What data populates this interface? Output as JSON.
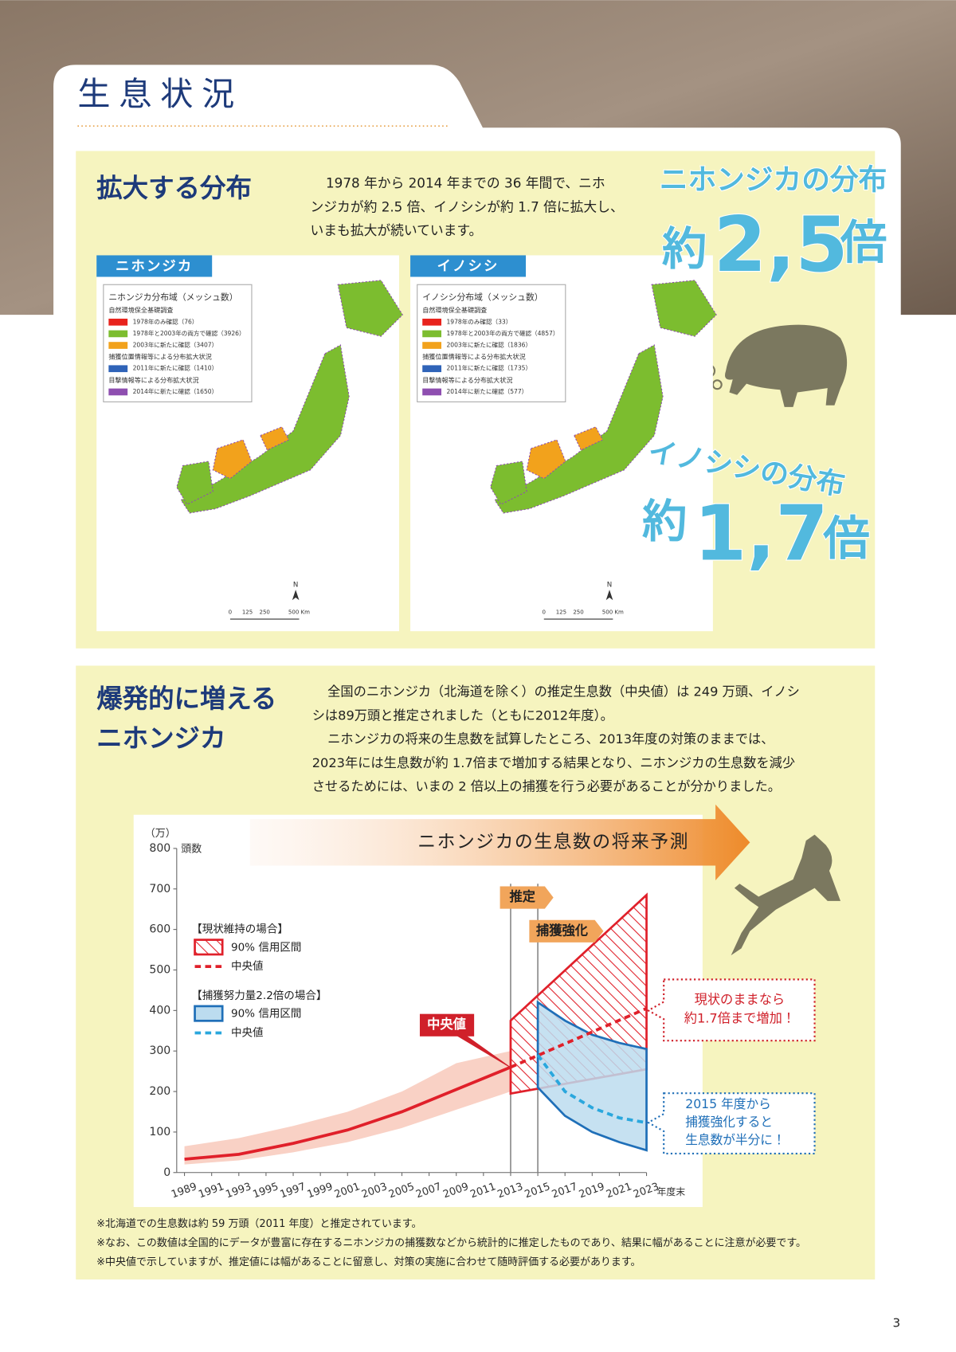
{
  "header": {
    "title": "生息状況"
  },
  "section1": {
    "title": "拡大する分布",
    "text": [
      "1978 年から 2014 年までの 36 年間で、ニホ",
      "ンジカが約 2.5 倍、イノシシが約 1.7 倍に拡大し、",
      "いまも拡大が続いています。"
    ],
    "maps": [
      {
        "tab": "ニホンジカ",
        "legend_title": "ニホンジカ分布域（メッシュ数）",
        "legend": [
          {
            "text": "自然環境保全基礎調査"
          },
          {
            "text": "1978年のみ確認（76）",
            "color": "#e8231d"
          },
          {
            "text": "1978年と2003年の両方で確認（3926）",
            "color": "#7cbd2f"
          },
          {
            "text": "2003年に新たに確認（3407）",
            "color": "#f2a21c"
          },
          {
            "text": "捕獲位置情報等による分布拡大状況"
          },
          {
            "text": "2011年に新たに確認（1410）",
            "color": "#2f63b8"
          },
          {
            "text": "目撃情報等による分布拡大状況"
          },
          {
            "text": "2014年に新たに確認（1650）",
            "color": "#8e4fb0"
          }
        ],
        "north": "N",
        "scale": [
          "0",
          "125",
          "250",
          "500 Km"
        ]
      },
      {
        "tab": "イノシシ",
        "legend_title": "イノシシ分布域（メッシュ数）",
        "legend": [
          {
            "text": "自然環境保全基礎調査"
          },
          {
            "text": "1978年のみ確認（33）",
            "color": "#e8231d"
          },
          {
            "text": "1978年と2003年の両方で確認（4857）",
            "color": "#7cbd2f"
          },
          {
            "text": "2003年に新たに確認（1836）",
            "color": "#f2a21c"
          },
          {
            "text": "捕獲位置情報等による分布拡大状況"
          },
          {
            "text": "2011年に新たに確認（1735）",
            "color": "#2f63b8"
          },
          {
            "text": "目撃情報等による分布拡大状況"
          },
          {
            "text": "2014年に新たに確認（577）",
            "color": "#8e4fb0"
          }
        ],
        "north": "N",
        "scale": [
          "0",
          "125",
          "250",
          "500 Km"
        ]
      }
    ],
    "callouts": [
      {
        "label": "ニホンジカの分布",
        "prefix": "約",
        "number": "2,5",
        "suffix": "倍"
      },
      {
        "label": "イノシシの分布",
        "prefix": "約",
        "number": "1,7",
        "suffix": "倍"
      }
    ]
  },
  "section2": {
    "title": [
      "爆発的に増える",
      "ニホンジカ"
    ],
    "text": [
      "全国のニホンジカ（北海道を除く）の推定生息数（中央値）は 249 万頭、イノシ",
      "シは89万頭と推定されました（ともに2012年度）。",
      "ニホンジカの将来の生息数を試算したところ、2013年度の対策のままでは、",
      "2023年には生息数が約 1.7倍まで増加する結果となり、ニホンジカの生息数を減少",
      "させるためには、いまの 2 倍以上の捕獲を行う必要があることが分かりました。"
    ]
  },
  "chart_data": {
    "type": "line",
    "title": "ニホンジカの生息数の将来予測",
    "y_unit": "（万）",
    "ylabel": "頭数",
    "xlabel": "年度末",
    "xlim": [
      1989,
      2023
    ],
    "ylim": [
      0,
      800
    ],
    "xticks": [
      1989,
      1991,
      1993,
      1995,
      1997,
      1999,
      2001,
      2003,
      2005,
      2007,
      2009,
      2011,
      2013,
      2015,
      2017,
      2019,
      2021,
      2023
    ],
    "yticks": [
      0,
      100,
      200,
      300,
      400,
      500,
      600,
      700,
      800
    ],
    "vlines": [
      2013,
      2015
    ],
    "bands": [
      {
        "x": [
          1989,
          1993,
          1997,
          2001,
          2005,
          2009,
          2013
        ],
        "lower": [
          20,
          30,
          50,
          75,
          110,
          155,
          200
        ],
        "upper": [
          65,
          85,
          115,
          150,
          200,
          270,
          300
        ],
        "color": "#f8c9bb"
      },
      {
        "x": [
          2013,
          2023
        ],
        "lower": [
          195,
          255
        ],
        "upper": [
          375,
          685
        ],
        "color": "#e0202a",
        "hatch": true
      },
      {
        "x": [
          2015,
          2017,
          2019,
          2021,
          2023
        ],
        "lower": [
          210,
          140,
          100,
          75,
          55
        ],
        "upper": [
          420,
          375,
          340,
          320,
          305
        ],
        "color": "#1f6fb8",
        "fill": "#bcdcef"
      }
    ],
    "lines": [
      {
        "x": [
          1989,
          1993,
          1997,
          2001,
          2005,
          2009,
          2013
        ],
        "values": [
          33,
          45,
          72,
          105,
          150,
          205,
          260
        ],
        "color": "#e0202a"
      },
      {
        "x": [
          2013,
          2023
        ],
        "values": [
          260,
          405
        ],
        "color": "#e0202a",
        "dashed": true
      },
      {
        "x": [
          2015,
          2017,
          2019,
          2021,
          2023
        ],
        "values": [
          290,
          200,
          160,
          135,
          123
        ],
        "color": "#1f6fb8",
        "dashed": true
      }
    ],
    "legend": [
      {
        "heading": "【現状維持の場合】",
        "band": "90% 信用区間",
        "median": "中央値",
        "color": "#e0202a",
        "hatch": true
      },
      {
        "heading": "【捕獲努力量2.2倍の場合】",
        "band": "90% 信用区間",
        "median": "中央値",
        "color": "#1f6fb8",
        "fill": "#bcdcef",
        "line": "#2aa7dd"
      }
    ],
    "annotations": {
      "estimate": "推定",
      "capture": "捕獲強化",
      "median": "中央値",
      "status_quo": [
        "現状のままなら",
        "約1.7倍まで増加！"
      ],
      "reinforced": [
        "2015 年度から",
        "捕獲強化すると",
        "生息数が半分に！"
      ]
    }
  },
  "footnotes": [
    "※北海道での生息数は約 59 万頭（2011 年度）と推定されています。",
    "※なお、この数値は全国的にデータが豊富に存在するニホンジカの捕獲数などから統計的に推定したものであり、結果に幅があることに注意が必要です。",
    "※中央値で示していますが、推定値には幅があることに留意し、対策の実施に合わせて随時評価する必要があります。"
  ],
  "page_number": "3"
}
